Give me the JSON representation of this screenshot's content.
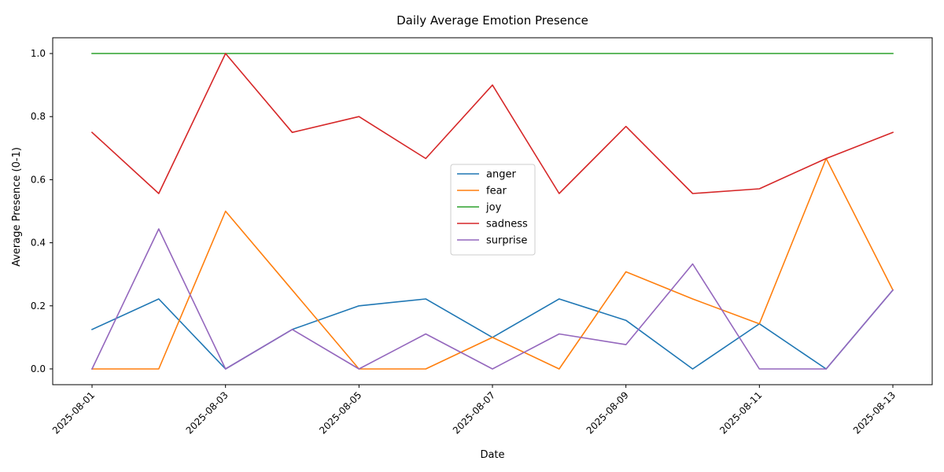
{
  "chart_data": {
    "type": "line",
    "title": "Daily Average Emotion Presence",
    "xlabel": "Date",
    "ylabel": "Average Presence (0-1)",
    "x": [
      "2025-08-01",
      "2025-08-02",
      "2025-08-03",
      "2025-08-04",
      "2025-08-05",
      "2025-08-06",
      "2025-08-07",
      "2025-08-08",
      "2025-08-09",
      "2025-08-10",
      "2025-08-11",
      "2025-08-12",
      "2025-08-13"
    ],
    "x_tick_labels": [
      "2025-08-01",
      "2025-08-03",
      "2025-08-05",
      "2025-08-07",
      "2025-08-09",
      "2025-08-11",
      "2025-08-13"
    ],
    "ylim": [
      -0.05,
      1.05
    ],
    "y_ticks": [
      0.0,
      0.2,
      0.4,
      0.6,
      0.8,
      1.0
    ],
    "y_tick_labels": [
      "0.0",
      "0.2",
      "0.4",
      "0.6",
      "0.8",
      "1.0"
    ],
    "grid": false,
    "legend_position": "center",
    "series": [
      {
        "name": "anger",
        "color": "#1f77b4",
        "values": [
          0.125,
          0.222,
          0.0,
          0.125,
          0.2,
          0.222,
          0.1,
          0.222,
          0.154,
          0.0,
          0.143,
          0.0,
          0.25
        ]
      },
      {
        "name": "fear",
        "color": "#ff7f0e",
        "values": [
          0.0,
          0.0,
          0.5,
          0.25,
          0.0,
          0.0,
          0.1,
          0.0,
          0.308,
          0.222,
          0.143,
          0.667,
          0.25
        ]
      },
      {
        "name": "joy",
        "color": "#2ca02c",
        "values": [
          1.0,
          1.0,
          1.0,
          1.0,
          1.0,
          1.0,
          1.0,
          1.0,
          1.0,
          1.0,
          1.0,
          1.0,
          1.0
        ]
      },
      {
        "name": "sadness",
        "color": "#d62728",
        "values": [
          0.75,
          0.556,
          1.0,
          0.75,
          0.8,
          0.667,
          0.9,
          0.556,
          0.769,
          0.556,
          0.571,
          0.667,
          0.75
        ]
      },
      {
        "name": "surprise",
        "color": "#9467bd",
        "values": [
          0.0,
          0.444,
          0.0,
          0.125,
          0.0,
          0.111,
          0.0,
          0.111,
          0.077,
          0.333,
          0.0,
          0.0,
          0.25
        ]
      }
    ]
  }
}
